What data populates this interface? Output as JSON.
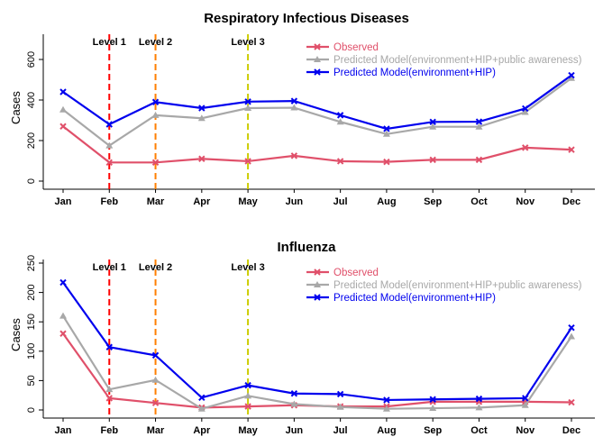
{
  "chart_data": [
    {
      "type": "line",
      "title": "Respiratory Infectious Diseases",
      "ylabel": "Cases",
      "xlabel": "",
      "categories": [
        "Jan",
        "Feb",
        "Mar",
        "Apr",
        "May",
        "Jun",
        "Jul",
        "Aug",
        "Sep",
        "Oct",
        "Nov",
        "Dec"
      ],
      "ylim": [
        0,
        700
      ],
      "yticks": [
        0,
        200,
        400,
        600
      ],
      "legend_placement": "top-right",
      "grid": false,
      "vlines": [
        {
          "label": "Level 1",
          "at": "Feb",
          "color": "#ff0000"
        },
        {
          "label": "Level 2",
          "at": "Mar",
          "color": "#ff7f00"
        },
        {
          "label": "Level 3",
          "at": "May",
          "color": "#cccc00"
        }
      ],
      "series": [
        {
          "name": "Observed",
          "color": "#e0506a",
          "marker": "x",
          "values": [
            270,
            92,
            92,
            110,
            98,
            125,
            98,
            95,
            105,
            105,
            165,
            155
          ]
        },
        {
          "name": "Predicted Model(environment+HIP+public awareness)",
          "color": "#a8a8a8",
          "marker": "triangle",
          "values": [
            352,
            175,
            325,
            310,
            360,
            362,
            292,
            232,
            268,
            268,
            340,
            508
          ]
        },
        {
          "name": "Predicted Model(environment+HIP)",
          "color": "#0000ee",
          "marker": "x",
          "values": [
            440,
            280,
            390,
            360,
            392,
            395,
            325,
            258,
            292,
            293,
            358,
            522
          ]
        }
      ]
    },
    {
      "type": "line",
      "title": "Influenza",
      "ylabel": "Cases",
      "xlabel": "",
      "categories": [
        "Jan",
        "Feb",
        "Mar",
        "Apr",
        "May",
        "Jun",
        "Jul",
        "Aug",
        "Sep",
        "Oct",
        "Nov",
        "Dec"
      ],
      "ylim": [
        0,
        250
      ],
      "yticks": [
        0,
        50,
        100,
        150,
        200,
        250
      ],
      "legend_placement": "top-right",
      "grid": false,
      "vlines": [
        {
          "label": "Level 1",
          "at": "Feb",
          "color": "#ff0000"
        },
        {
          "label": "Level 2",
          "at": "Mar",
          "color": "#ff7f00"
        },
        {
          "label": "Level 3",
          "at": "May",
          "color": "#cccc00"
        }
      ],
      "series": [
        {
          "name": "Observed",
          "color": "#e0506a",
          "marker": "x",
          "values": [
            130,
            20,
            12,
            4,
            6,
            8,
            6,
            6,
            14,
            14,
            14,
            13
          ]
        },
        {
          "name": "Predicted Model(environment+HIP+public awareness)",
          "color": "#a8a8a8",
          "marker": "triangle",
          "values": [
            160,
            35,
            51,
            2,
            24,
            10,
            5,
            2,
            3,
            4,
            8,
            125
          ]
        },
        {
          "name": "Predicted Model(environment+HIP)",
          "color": "#0000ee",
          "marker": "x",
          "values": [
            217,
            107,
            93,
            21,
            42,
            28,
            27,
            17,
            18,
            19,
            20,
            140
          ]
        }
      ]
    }
  ]
}
